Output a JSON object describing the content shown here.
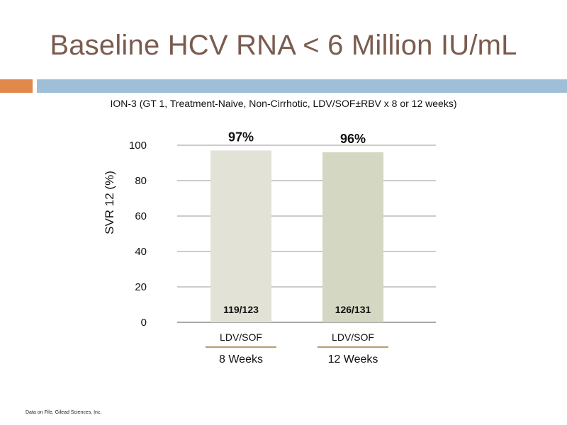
{
  "slide": {
    "title": "Baseline HCV RNA < 6 Million IU/mL",
    "subtitle": "ION-3 (GT 1, Treatment-Naive, Non-Cirrhotic, LDV/SOF±RBV x 8 or 12 weeks)",
    "footnote": "Data on File, Gilead Sciences, Inc."
  },
  "colors": {
    "title": "#7a5c4f",
    "accent_orange": "#e0894a",
    "accent_blue": "#9fbfd8",
    "bar_8wk": "#e2e3d6",
    "bar_12wk": "#d4d8c2",
    "underline": "#b79a73"
  },
  "chart_data": {
    "type": "bar",
    "categories": [
      "LDV/SOF",
      "LDV/SOF"
    ],
    "groups": [
      "8 Weeks",
      "12 Weeks"
    ],
    "values": [
      97,
      96
    ],
    "value_labels": [
      "97%",
      "96%"
    ],
    "counts": [
      "119/123",
      "126/131"
    ],
    "ylabel": "SVR 12 (%)",
    "xlabel": "",
    "ylim": [
      0,
      100
    ],
    "yticks": [
      0,
      20,
      40,
      60,
      80,
      100
    ],
    "grid": true
  }
}
